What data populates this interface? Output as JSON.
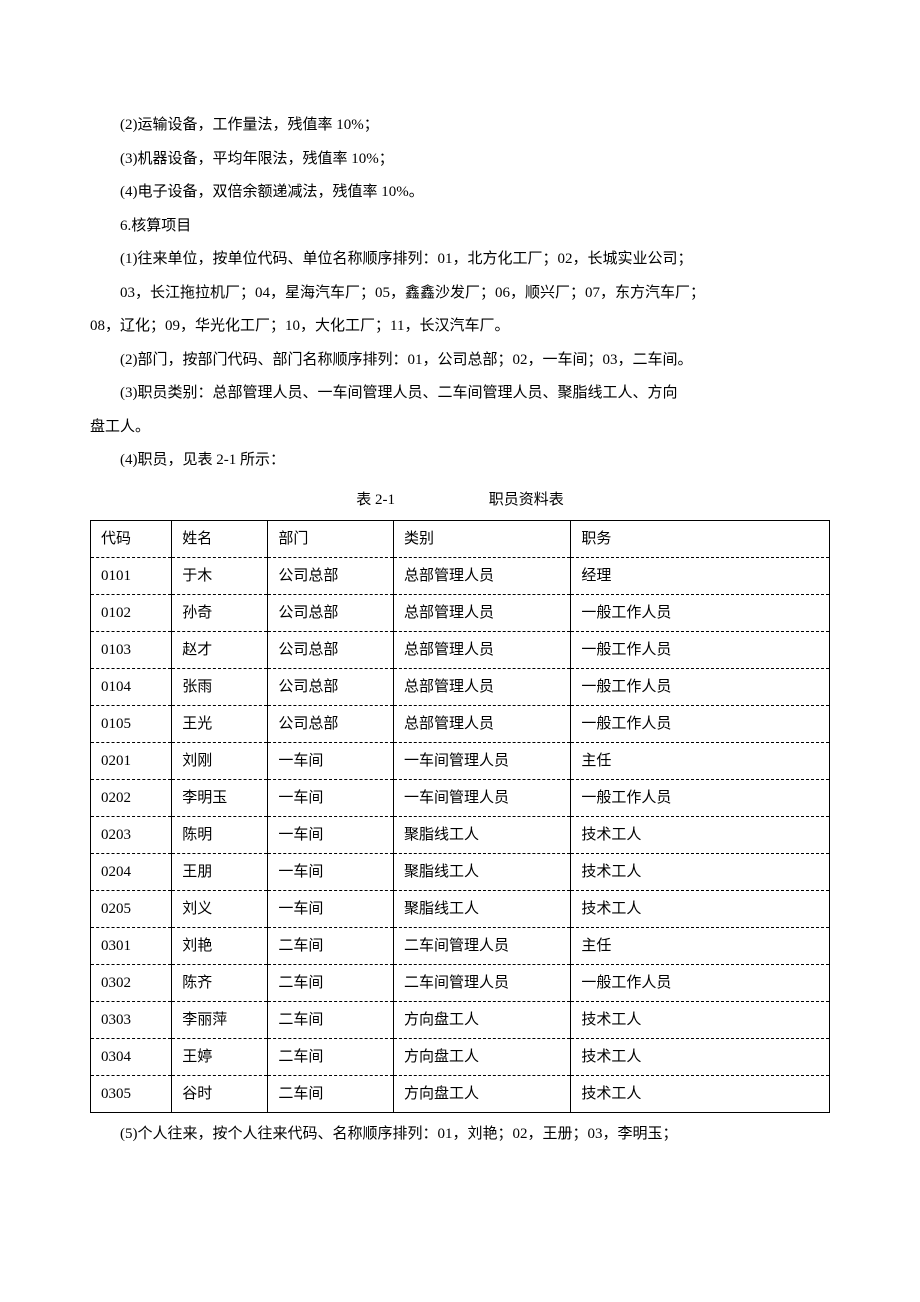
{
  "paragraphs": {
    "p1": "(2)运输设备，工作量法，残值率 10%；",
    "p2": "(3)机器设备，平均年限法，残值率 10%；",
    "p3": "(4)电子设备，双倍余额递减法，残值率 10%。",
    "p4": "6.核算项目",
    "p5": "(1)往来单位，按单位代码、单位名称顺序排列：01，北方化工厂；02，长城实业公司；",
    "p6": "03，长江拖拉机厂；04，星海汽车厂；05，鑫鑫沙发厂；06，顺兴厂；07，东方汽车厂；",
    "p7": "08，辽化；09，华光化工厂；10，大化工厂；11，长汉汽车厂。",
    "p8": "(2)部门，按部门代码、部门名称顺序排列：01，公司总部；02，一车间；03，二车间。",
    "p9": "(3)职员类别：总部管理人员、一车间管理人员、二车间管理人员、聚脂线工人、方向",
    "p10": "盘工人。",
    "p11": "(4)职员，见表 2-1 所示：",
    "p12": "(5)个人往来，按个人往来代码、名称顺序排列：01，刘艳；02，王册；03，李明玉；"
  },
  "table": {
    "caption_label": "表 2-1",
    "caption_title": "职员资料表",
    "columns": [
      "代码",
      "姓名",
      "部门",
      "类别",
      "职务"
    ],
    "rows": [
      [
        "0101",
        "于木",
        "公司总部",
        "总部管理人员",
        "经理"
      ],
      [
        "0102",
        "孙奇",
        "公司总部",
        "总部管理人员",
        "一般工作人员"
      ],
      [
        "0103",
        "赵才",
        "公司总部",
        "总部管理人员",
        "一般工作人员"
      ],
      [
        "0104",
        "张雨",
        "公司总部",
        "总部管理人员",
        "一般工作人员"
      ],
      [
        "0105",
        "王光",
        "公司总部",
        "总部管理人员",
        "一般工作人员"
      ],
      [
        "0201",
        "刘刚",
        "一车间",
        "一车间管理人员",
        "主任"
      ],
      [
        "0202",
        "李明玉",
        "一车间",
        "一车间管理人员",
        "一般工作人员"
      ],
      [
        "0203",
        "陈明",
        "一车间",
        "聚脂线工人",
        "技术工人"
      ],
      [
        "0204",
        "王朋",
        "一车间",
        "聚脂线工人",
        "技术工人"
      ],
      [
        "0205",
        "刘义",
        "一车间",
        "聚脂线工人",
        "技术工人"
      ],
      [
        "0301",
        "刘艳",
        "二车间",
        "二车间管理人员",
        "主任"
      ],
      [
        "0302",
        "陈齐",
        "二车间",
        "二车间管理人员",
        "一般工作人员"
      ],
      [
        "0303",
        "李丽萍",
        "二车间",
        "方向盘工人",
        "技术工人"
      ],
      [
        "0304",
        "王婷",
        "二车间",
        "方向盘工人",
        "技术工人"
      ],
      [
        "0305",
        "谷时",
        "二车间",
        "方向盘工人",
        "技术工人"
      ]
    ]
  }
}
